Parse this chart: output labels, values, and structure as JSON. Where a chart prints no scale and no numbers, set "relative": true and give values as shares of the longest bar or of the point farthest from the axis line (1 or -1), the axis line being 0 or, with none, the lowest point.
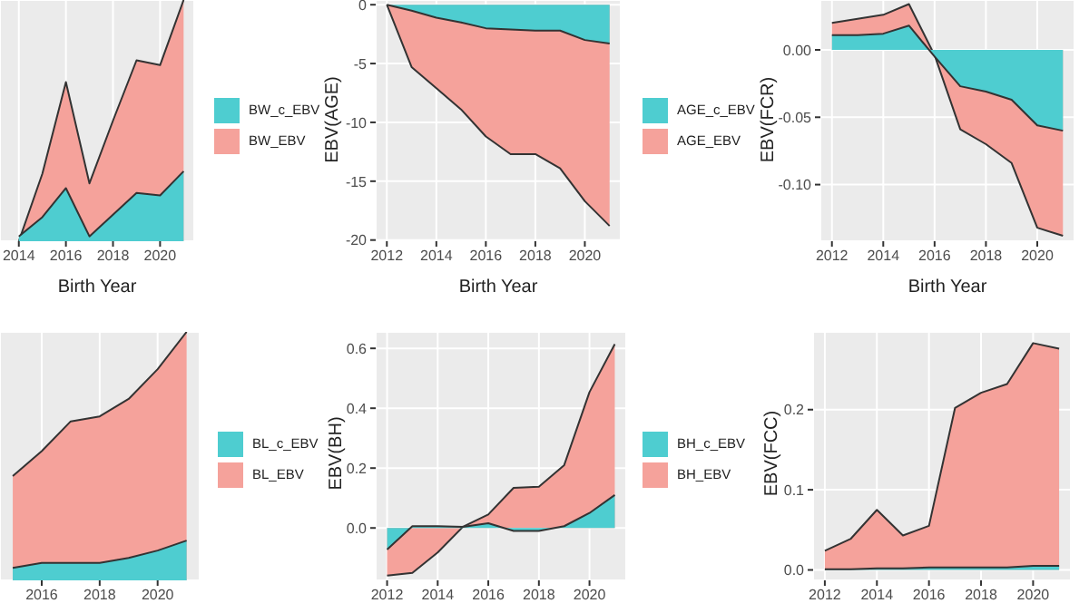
{
  "chart_data": [
    {
      "type": "area",
      "relative": true,
      "xlabel": "Birth Year",
      "x": [
        2014,
        2015,
        2016,
        2017,
        2018,
        2019,
        2020,
        2021
      ],
      "xlim": [
        2013.2,
        2021.45
      ],
      "xticks": [
        2014,
        2016,
        2018,
        2020
      ],
      "tick_labels": "x",
      "grid": true,
      "legend": "right",
      "series": [
        {
          "name": "BW_c_EBV",
          "color": "#4ecdd0",
          "values": [
            0.02,
            0.1,
            0.22,
            0.02,
            0.11,
            0.2,
            0.19,
            0.29
          ]
        },
        {
          "name": "BW_EBV",
          "color": "#f5a29b",
          "values": [
            0,
            0.28,
            0.66,
            0.24,
            0.5,
            0.75,
            0.73,
            1
          ]
        }
      ]
    },
    {
      "type": "area",
      "xlabel": "Birth Year",
      "ylabel": "EBV(AGE)",
      "x": [
        2012,
        2013,
        2014,
        2015,
        2016,
        2017,
        2018,
        2019,
        2020,
        2021
      ],
      "xlim": [
        2011.55,
        2021.45
      ],
      "xticks": [
        2012,
        2014,
        2016,
        2018,
        2020
      ],
      "ylim": [
        -20.1,
        0.4
      ],
      "yticks": [
        0,
        -5,
        -10,
        -15,
        -20
      ],
      "grid": true,
      "legend": "right",
      "series": [
        {
          "name": "AGE_c_EBV",
          "color": "#4ecdd0",
          "values": [
            0,
            -0.5,
            -1.1,
            -1.5,
            -2.0,
            -2.1,
            -2.2,
            -2.2,
            -3.0,
            -3.3
          ]
        },
        {
          "name": "AGE_EBV",
          "color": "#f5a29b",
          "values": [
            0,
            -5.3,
            -7.1,
            -8.9,
            -11.2,
            -12.7,
            -12.7,
            -13.9,
            -16.7,
            -18.8
          ]
        }
      ]
    },
    {
      "type": "area",
      "xlabel": "Birth Year",
      "ylabel": "EBV(FCR)",
      "x": [
        2012,
        2013,
        2014,
        2015,
        2016,
        2017,
        2018,
        2019,
        2020,
        2021
      ],
      "xlim": [
        2011.55,
        2021.45
      ],
      "xticks": [
        2012,
        2014,
        2016,
        2018,
        2020
      ],
      "ylim": [
        -0.142,
        0.037
      ],
      "yticks": [
        {
          "value": 0,
          "label": "0.00"
        },
        {
          "value": -0.05,
          "label": "-0.05"
        },
        {
          "value": -0.1,
          "label": "-0.10"
        }
      ],
      "grid": true,
      "series": [
        {
          "color": "#4ecdd0",
          "values": [
            0.011,
            0.011,
            0.012,
            0.018,
            -0.005,
            -0.027,
            -0.031,
            -0.037,
            -0.056,
            -0.06
          ]
        },
        {
          "color": "#f5a29b",
          "values": [
            0.02,
            0.023,
            0.026,
            0.034,
            -0.004,
            -0.059,
            -0.07,
            -0.084,
            -0.132,
            -0.138
          ]
        }
      ]
    },
    {
      "type": "area",
      "relative": true,
      "x": [
        2015,
        2016,
        2017,
        2018,
        2019,
        2020,
        2021
      ],
      "xlim": [
        2014.56,
        2021.45
      ],
      "xticks": [
        2016,
        2018,
        2020
      ],
      "tick_labels": "x",
      "grid": true,
      "legend": "right",
      "series": [
        {
          "name": "BL_c_EBV",
          "color": "#4ecdd0",
          "values": [
            0.05,
            0.07,
            0.07,
            0.07,
            0.09,
            0.12,
            0.16
          ]
        },
        {
          "name": "BL_EBV",
          "color": "#f5a29b",
          "values": [
            0.42,
            0.52,
            0.64,
            0.66,
            0.73,
            0.85,
            1
          ]
        }
      ]
    },
    {
      "type": "area",
      "ylabel": "EBV(BH)",
      "x": [
        2012,
        2013,
        2014,
        2015,
        2016,
        2017,
        2018,
        2019,
        2020,
        2021
      ],
      "xlim": [
        2011.55,
        2021.45
      ],
      "xticks": [
        2012,
        2014,
        2016,
        2018,
        2020
      ],
      "ylim": [
        -0.175,
        0.655
      ],
      "yticks": [
        {
          "value": 0,
          "label": "0.0"
        },
        0.2,
        0.4,
        0.6
      ],
      "grid": true,
      "legend": "right",
      "series": [
        {
          "name": "BH_c_EBV",
          "color": "#4ecdd0",
          "values": [
            -0.072,
            0.006,
            0.006,
            0.004,
            0.016,
            -0.01,
            -0.01,
            0.006,
            0.05,
            0.11
          ]
        },
        {
          "name": "BH_EBV",
          "color": "#f5a29b",
          "values": [
            -0.159,
            -0.15,
            -0.082,
            0.004,
            0.045,
            0.134,
            0.138,
            0.21,
            0.454,
            0.614
          ]
        }
      ]
    },
    {
      "type": "area",
      "ylabel": "EBV(FCC)",
      "x": [
        2012,
        2013,
        2014,
        2015,
        2016,
        2017,
        2018,
        2019,
        2020,
        2021
      ],
      "xlim": [
        2011.55,
        2021.45
      ],
      "xticks": [
        2012,
        2014,
        2016,
        2018,
        2020
      ],
      "ylim": [
        -0.013,
        0.297
      ],
      "yticks": [
        {
          "value": 0,
          "label": "0.0"
        },
        0.1,
        0.2
      ],
      "grid": true,
      "series": [
        {
          "color": "#4ecdd0",
          "values": [
            0.001,
            0.001,
            0.002,
            0.002,
            0.003,
            0.003,
            0.003,
            0.003,
            0.005,
            0.005
          ]
        },
        {
          "color": "#f5a29b",
          "values": [
            0.024,
            0.039,
            0.075,
            0.043,
            0.055,
            0.202,
            0.221,
            0.232,
            0.283,
            0.276
          ]
        }
      ]
    }
  ]
}
